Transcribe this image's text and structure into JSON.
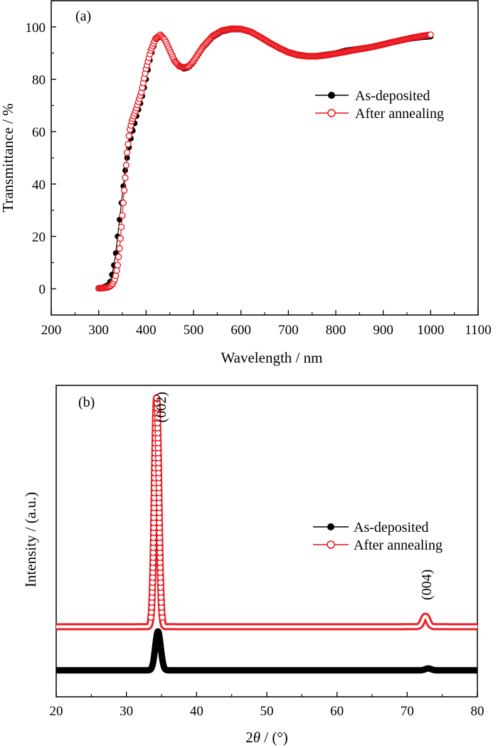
{
  "chart_data": [
    {
      "panel": "(a)",
      "type": "scatter",
      "title": "",
      "xlabel": "Wavelength / nm",
      "ylabel": "Transmittance / %",
      "xlim": [
        200,
        1100
      ],
      "ylim": [
        -10,
        110
      ],
      "xticks": [
        200,
        300,
        400,
        500,
        600,
        700,
        800,
        900,
        1000,
        1100
      ],
      "yticks": [
        0,
        20,
        40,
        60,
        80,
        100
      ],
      "legend_position": "right",
      "grid": false,
      "series": [
        {
          "name": "As-deposited",
          "color": "#000000",
          "marker": "filled-circle",
          "points": [
            [
              300,
              0.3
            ],
            [
              310,
              0.6
            ],
            [
              320,
              1.5
            ],
            [
              325,
              3
            ],
            [
              330,
              7
            ],
            [
              335,
              12
            ],
            [
              340,
              20
            ],
            [
              345,
              28
            ],
            [
              350,
              36
            ],
            [
              355,
              44
            ],
            [
              360,
              50
            ],
            [
              365,
              55
            ],
            [
              370,
              59
            ],
            [
              380,
              66
            ],
            [
              390,
              72
            ],
            [
              400,
              80
            ],
            [
              410,
              89
            ],
            [
              420,
              95
            ],
            [
              430,
              96.5
            ],
            [
              440,
              95
            ],
            [
              450,
              91.5
            ],
            [
              460,
              87.5
            ],
            [
              470,
              85
            ],
            [
              480,
              84
            ],
            [
              490,
              84.5
            ],
            [
              500,
              86.5
            ],
            [
              520,
              92
            ],
            [
              540,
              96
            ],
            [
              560,
              98.2
            ],
            [
              580,
              99
            ],
            [
              600,
              99
            ],
            [
              620,
              98
            ],
            [
              640,
              96
            ],
            [
              660,
              94
            ],
            [
              680,
              92
            ],
            [
              700,
              90.5
            ],
            [
              720,
              89.5
            ],
            [
              740,
              89
            ],
            [
              760,
              89
            ],
            [
              780,
              89.5
            ],
            [
              800,
              90
            ],
            [
              820,
              91
            ],
            [
              840,
              91.5
            ],
            [
              860,
              92
            ],
            [
              880,
              92.5
            ],
            [
              900,
              93.5
            ],
            [
              920,
              94.3
            ],
            [
              940,
              95
            ],
            [
              960,
              95.5
            ],
            [
              980,
              96
            ],
            [
              1000,
              96.3
            ]
          ]
        },
        {
          "name": "After annealing",
          "color": "#e8141b",
          "marker": "open-circle",
          "points": [
            [
              300,
              0.2
            ],
            [
              310,
              0.3
            ],
            [
              320,
              0.6
            ],
            [
              325,
              1
            ],
            [
              330,
              2
            ],
            [
              335,
              4
            ],
            [
              340,
              9
            ],
            [
              345,
              17
            ],
            [
              350,
              28
            ],
            [
              355,
              40
            ],
            [
              360,
              52
            ],
            [
              365,
              60
            ],
            [
              370,
              64
            ],
            [
              380,
              69
            ],
            [
              390,
              75
            ],
            [
              400,
              84
            ],
            [
              410,
              91
            ],
            [
              420,
              95.5
            ],
            [
              430,
              97
            ],
            [
              440,
              95
            ],
            [
              450,
              91
            ],
            [
              460,
              87
            ],
            [
              470,
              85
            ],
            [
              480,
              84.5
            ],
            [
              490,
              85
            ],
            [
              500,
              87
            ],
            [
              520,
              92.5
            ],
            [
              540,
              96.5
            ],
            [
              560,
              98.6
            ],
            [
              580,
              99.3
            ],
            [
              600,
              99.2
            ],
            [
              620,
              98.2
            ],
            [
              640,
              96.2
            ],
            [
              660,
              94
            ],
            [
              680,
              92
            ],
            [
              700,
              90.3
            ],
            [
              720,
              89.2
            ],
            [
              740,
              88.8
            ],
            [
              760,
              88.8
            ],
            [
              780,
              89.2
            ],
            [
              800,
              89.8
            ],
            [
              820,
              90.5
            ],
            [
              840,
              91.2
            ],
            [
              860,
              91.8
            ],
            [
              880,
              92.5
            ],
            [
              900,
              93.3
            ],
            [
              920,
              94.2
            ],
            [
              940,
              95
            ],
            [
              960,
              95.8
            ],
            [
              980,
              96.5
            ],
            [
              1000,
              97
            ]
          ]
        }
      ]
    },
    {
      "panel": "(b)",
      "type": "line",
      "title": "",
      "xlabel_prefix": "2",
      "xlabel_symbol": "θ",
      "xlabel_suffix": " / (°)",
      "ylabel": "Intensity / (a.u.)",
      "xlim": [
        20,
        80
      ],
      "ylim": [
        0,
        100
      ],
      "xticks": [
        20,
        30,
        40,
        50,
        60,
        70,
        80
      ],
      "yticks_shown": false,
      "legend_position": "right",
      "grid": false,
      "annotations": [
        {
          "text": "(002)",
          "x": 35.6,
          "y": 93
        },
        {
          "text": "(004)",
          "x": 73.4,
          "y": 36
        }
      ],
      "series": [
        {
          "name": "As-deposited",
          "color": "#000000",
          "marker": "filled-circle",
          "baseline": 8.5,
          "peaks": [
            {
              "center": 34.5,
              "height": 12.5,
              "width": 0.55
            },
            {
              "center": 73.0,
              "height": 0.6,
              "width": 0.6
            }
          ]
        },
        {
          "name": "After annealing",
          "color": "#e8141b",
          "marker": "open-circle",
          "baseline": 22.5,
          "peaks": [
            {
              "center": 34.3,
              "height": 73.5,
              "width": 0.45
            },
            {
              "center": 72.6,
              "height": 3.4,
              "width": 0.55
            }
          ]
        }
      ]
    }
  ]
}
